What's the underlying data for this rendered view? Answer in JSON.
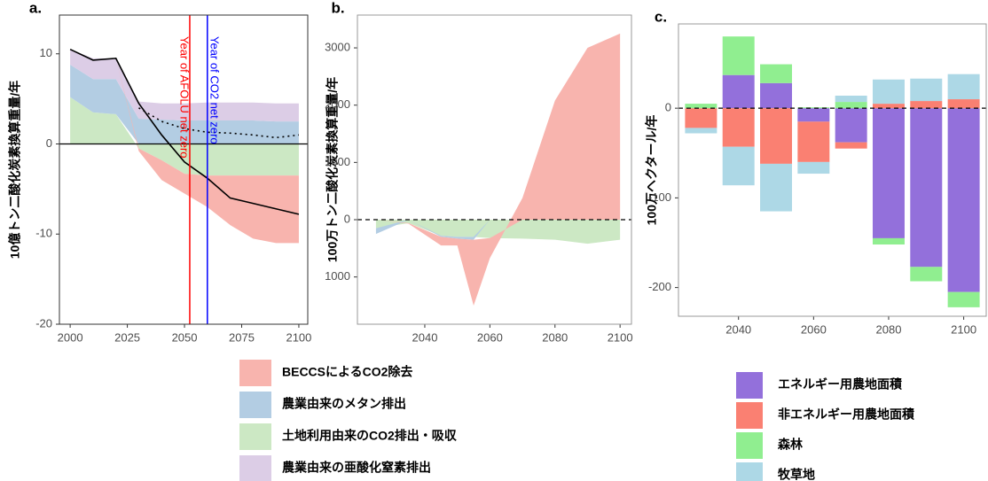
{
  "chart_data": [
    {
      "type": "area",
      "label": "a.",
      "ylabel": "10億トン二酸化炭素換算重量/年",
      "x": [
        2000,
        2010,
        2020,
        2030,
        2040,
        2050,
        2060,
        2070,
        2080,
        2090,
        2100
      ],
      "series": [
        {
          "color": "#cce8c4",
          "values": [
            5.2,
            3.5,
            3.3,
            -0.5,
            -1.8,
            -3.3,
            -3.5,
            -3.5,
            -3.5,
            -3.5,
            -3.5
          ]
        },
        {
          "color": "#b3cde3",
          "values": [
            3.6,
            3.7,
            3.9,
            2.8,
            2.7,
            2.6,
            2.6,
            2.6,
            2.6,
            2.5,
            2.5
          ]
        },
        {
          "color": "#dccde6",
          "values": [
            1.7,
            2.3,
            2.3,
            1.9,
            1.8,
            1.9,
            2.0,
            2.0,
            2.0,
            2.0,
            2.0
          ]
        },
        {
          "color": "#f8b4ae",
          "values": [
            0,
            0,
            0,
            -0.3,
            -2.2,
            -2.2,
            -3.5,
            -5.5,
            -7,
            -7.5,
            -7.5
          ]
        }
      ],
      "lines": [
        {
          "color": "#000000",
          "dash": "solid",
          "values": [
            10.5,
            9.3,
            9.5,
            4.5,
            1,
            -2,
            -3.8,
            -6,
            -6.6,
            -7.2,
            -7.8
          ]
        },
        {
          "color": "#000000",
          "dash": "dotted",
          "values": [
            null,
            null,
            null,
            4,
            2.5,
            1.7,
            1.3,
            1.2,
            1,
            0.7,
            1
          ]
        }
      ],
      "vlines": [
        {
          "x": 2052.3,
          "label": "Year of AFOLU net zero",
          "color": "#ff0000"
        },
        {
          "x": 2060,
          "label": "Year of CO2 net zero",
          "color": "#0000ff"
        }
      ],
      "zero_line": "solid",
      "xlim": [
        1995.3,
        2103.9
      ],
      "xticks": [
        2000,
        2025,
        2050,
        2075,
        2100
      ],
      "ylim": [
        -20,
        14.3
      ],
      "yticks": [
        -20,
        -10,
        0,
        10
      ]
    },
    {
      "type": "area",
      "label": "b.",
      "ylabel": "100万トン二酸化炭素換算重量/年",
      "x": [
        2025,
        2035,
        2045,
        2050,
        2055,
        2060,
        2070,
        2080,
        2090,
        2100
      ],
      "series": [
        {
          "color": "#cce8c4",
          "values": [
            -150,
            -60,
            -280,
            -300,
            -300,
            -320,
            -330,
            -350,
            -420,
            -350
          ]
        },
        {
          "color": "#b3cde3",
          "values": [
            -100,
            0,
            -20,
            -30,
            -50,
            0,
            0,
            0,
            0,
            0
          ]
        },
        {
          "color": "#f8b4ae",
          "values": [
            0,
            -10,
            -150,
            -120,
            -1150,
            -350,
            380,
            2080,
            3000,
            3250
          ]
        }
      ],
      "zero_line": "dashed",
      "xlim": [
        2019.3,
        2103.5
      ],
      "xticks": [
        2040,
        2060,
        2080,
        2100
      ],
      "ylim": [
        -1825,
        3573
      ],
      "yticks": [
        {
          "value": -1000,
          "label": "1000"
        },
        0,
        1000,
        2000,
        3000
      ]
    },
    {
      "type": "bar",
      "label": "c.",
      "ylabel": "100万ヘクタール/年",
      "x": [
        2030,
        2040,
        2050,
        2060,
        2070,
        2080,
        2090,
        2100
      ],
      "series": [
        {
          "color": "#9370db",
          "values": [
            0,
            37,
            28,
            -15,
            -38,
            -145,
            -177,
            -205
          ]
        },
        {
          "color": "#fa8072",
          "values": [
            -22,
            -43,
            -62,
            -45,
            -7,
            5,
            8,
            10
          ]
        },
        {
          "color": "#90ee90",
          "values": [
            5,
            43,
            21,
            1,
            7,
            -7,
            -16,
            -17
          ]
        },
        {
          "color": "#add8e6",
          "values": [
            -6,
            -43,
            -53,
            -13,
            7,
            27,
            25,
            28
          ]
        }
      ],
      "zero_line": "dashed",
      "xlim": [
        2024,
        2106
      ],
      "xticks": [
        2040,
        2060,
        2080,
        2100
      ],
      "ylim": [
        -232,
        94
      ],
      "yticks": [
        -200,
        -100,
        0
      ]
    }
  ],
  "legends": [
    {
      "items": [
        {
          "name": "BECCSによるCO2除去",
          "color": "#f8b4ae"
        },
        {
          "name": "農業由来のメタン排出",
          "color": "#b3cde3"
        },
        {
          "name": "土地利用由来のCO2排出・吸収",
          "color": "#cce8c4"
        },
        {
          "name": "農業由来の亜酸化窒素排出",
          "color": "#dccde6"
        }
      ]
    },
    {
      "items": [
        {
          "name": "エネルギー用農地面積",
          "color": "#9370db"
        },
        {
          "name": "非エネルギー用農地面積",
          "color": "#fa8072"
        },
        {
          "name": "森林",
          "color": "#90ee90"
        },
        {
          "name": "牧草地",
          "color": "#add8e6"
        }
      ]
    }
  ]
}
